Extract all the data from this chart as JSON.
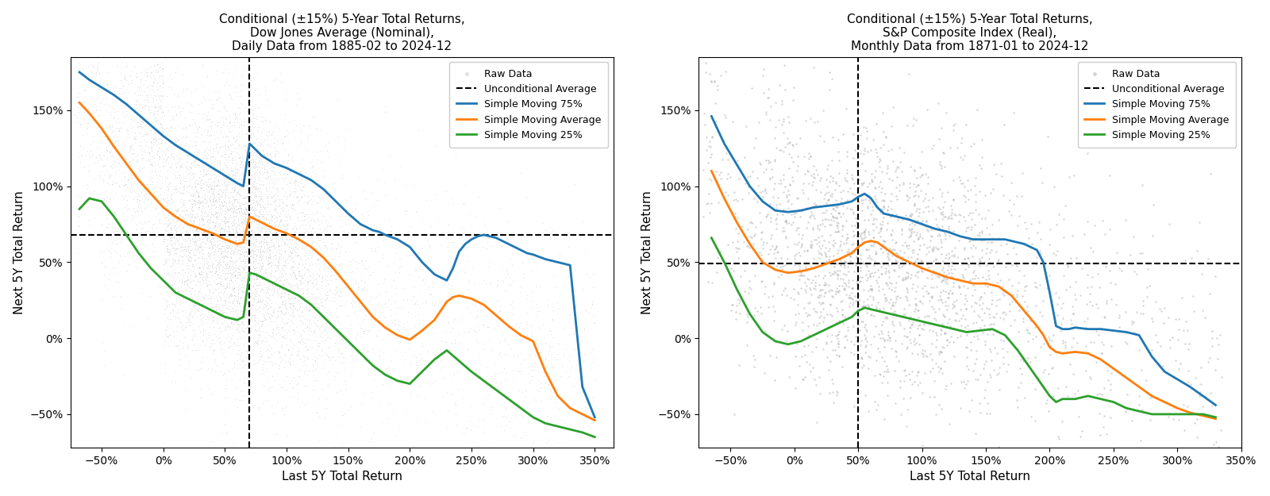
{
  "plot1": {
    "title": "Conditional (±15%) 5-Year Total Returns,\nDow Jones Average (Nominal),\nDaily Data from 1885-02 to 2024-12",
    "xlabel": "Last 5Y Total Return",
    "ylabel": "Next 5Y Total Return",
    "xlim": [
      -0.75,
      3.65
    ],
    "ylim": [
      -0.72,
      1.85
    ],
    "xticks": [
      -0.5,
      0.0,
      0.5,
      1.0,
      1.5,
      2.0,
      2.5,
      3.0,
      3.5
    ],
    "yticks": [
      -0.5,
      0.0,
      0.5,
      1.0,
      1.5
    ],
    "vline_x": 0.7,
    "hline_y": 0.68,
    "sma75_x": [
      -0.68,
      -0.6,
      -0.5,
      -0.4,
      -0.3,
      -0.2,
      -0.1,
      0.0,
      0.1,
      0.2,
      0.3,
      0.4,
      0.5,
      0.6,
      0.65,
      0.7,
      0.75,
      0.8,
      0.9,
      1.0,
      1.05,
      1.1,
      1.2,
      1.3,
      1.4,
      1.5,
      1.6,
      1.65,
      1.7,
      1.75,
      1.8,
      1.9,
      2.0,
      2.1,
      2.2,
      2.3,
      2.35,
      2.4,
      2.45,
      2.5,
      2.55,
      2.6,
      2.65,
      2.7,
      2.75,
      2.8,
      2.85,
      2.9,
      2.95,
      3.0,
      3.1,
      3.2,
      3.3,
      3.4,
      3.5
    ],
    "sma75_y": [
      1.75,
      1.7,
      1.65,
      1.6,
      1.54,
      1.47,
      1.4,
      1.33,
      1.27,
      1.22,
      1.17,
      1.12,
      1.07,
      1.02,
      1.0,
      1.28,
      1.24,
      1.2,
      1.15,
      1.12,
      1.1,
      1.08,
      1.04,
      0.98,
      0.9,
      0.82,
      0.75,
      0.73,
      0.71,
      0.7,
      0.68,
      0.65,
      0.6,
      0.5,
      0.42,
      0.38,
      0.46,
      0.57,
      0.62,
      0.65,
      0.67,
      0.68,
      0.67,
      0.66,
      0.64,
      0.62,
      0.6,
      0.58,
      0.56,
      0.55,
      0.52,
      0.5,
      0.48,
      -0.32,
      -0.52
    ],
    "sma_x": [
      -0.68,
      -0.6,
      -0.5,
      -0.4,
      -0.3,
      -0.2,
      -0.1,
      0.0,
      0.1,
      0.2,
      0.3,
      0.4,
      0.5,
      0.6,
      0.65,
      0.7,
      0.75,
      0.8,
      0.9,
      1.0,
      1.1,
      1.2,
      1.3,
      1.4,
      1.5,
      1.6,
      1.7,
      1.8,
      1.9,
      2.0,
      2.1,
      2.2,
      2.3,
      2.35,
      2.4,
      2.45,
      2.5,
      2.55,
      2.6,
      2.7,
      2.8,
      2.9,
      3.0,
      3.1,
      3.2,
      3.3,
      3.4,
      3.5
    ],
    "sma_y": [
      1.55,
      1.48,
      1.38,
      1.26,
      1.15,
      1.04,
      0.95,
      0.86,
      0.8,
      0.75,
      0.72,
      0.69,
      0.65,
      0.62,
      0.63,
      0.8,
      0.78,
      0.76,
      0.72,
      0.69,
      0.65,
      0.6,
      0.53,
      0.44,
      0.34,
      0.24,
      0.14,
      0.07,
      0.02,
      -0.01,
      0.05,
      0.12,
      0.24,
      0.27,
      0.28,
      0.27,
      0.26,
      0.24,
      0.22,
      0.15,
      0.08,
      0.02,
      -0.02,
      -0.22,
      -0.38,
      -0.46,
      -0.5,
      -0.54
    ],
    "sma25_x": [
      -0.68,
      -0.6,
      -0.5,
      -0.4,
      -0.3,
      -0.2,
      -0.1,
      0.0,
      0.1,
      0.2,
      0.3,
      0.4,
      0.5,
      0.6,
      0.65,
      0.7,
      0.75,
      0.8,
      0.9,
      1.0,
      1.1,
      1.2,
      1.3,
      1.4,
      1.5,
      1.6,
      1.7,
      1.8,
      1.9,
      2.0,
      2.1,
      2.2,
      2.3,
      2.4,
      2.5,
      2.6,
      2.7,
      2.8,
      2.9,
      3.0,
      3.1,
      3.2,
      3.3,
      3.4,
      3.5
    ],
    "sma25_y": [
      0.85,
      0.92,
      0.9,
      0.8,
      0.68,
      0.56,
      0.46,
      0.38,
      0.3,
      0.26,
      0.22,
      0.18,
      0.14,
      0.12,
      0.14,
      0.43,
      0.42,
      0.4,
      0.36,
      0.32,
      0.28,
      0.22,
      0.14,
      0.06,
      -0.02,
      -0.1,
      -0.18,
      -0.24,
      -0.28,
      -0.3,
      -0.22,
      -0.14,
      -0.08,
      -0.15,
      -0.22,
      -0.28,
      -0.34,
      -0.4,
      -0.46,
      -0.52,
      -0.56,
      -0.58,
      -0.6,
      -0.62,
      -0.65
    ]
  },
  "plot2": {
    "title": "Conditional (±15%) 5-Year Total Returns,\nS&P Composite Index (Real),\nMonthly Data from 1871-01 to 2024-12",
    "xlabel": "Last 5Y Total Return",
    "ylabel": "Next 5Y Total Return",
    "xlim": [
      -0.75,
      3.5
    ],
    "ylim": [
      -0.72,
      1.85
    ],
    "xticks": [
      -0.5,
      0.0,
      0.5,
      1.0,
      1.5,
      2.0,
      2.5,
      3.0,
      3.5
    ],
    "yticks": [
      -0.5,
      0.0,
      0.5,
      1.0,
      1.5
    ],
    "vline_x": 0.5,
    "hline_y": 0.49,
    "sma75_x": [
      -0.65,
      -0.55,
      -0.45,
      -0.35,
      -0.25,
      -0.15,
      -0.05,
      0.05,
      0.15,
      0.25,
      0.35,
      0.45,
      0.5,
      0.55,
      0.6,
      0.65,
      0.7,
      0.8,
      0.9,
      1.0,
      1.1,
      1.2,
      1.3,
      1.4,
      1.5,
      1.55,
      1.6,
      1.65,
      1.7,
      1.75,
      1.8,
      1.9,
      1.95,
      2.0,
      2.05,
      2.1,
      2.15,
      2.2,
      2.3,
      2.4,
      2.5,
      2.6,
      2.7,
      2.8,
      2.9,
      3.0,
      3.1,
      3.2,
      3.3
    ],
    "sma75_y": [
      1.46,
      1.28,
      1.14,
      1.0,
      0.9,
      0.84,
      0.83,
      0.84,
      0.86,
      0.87,
      0.88,
      0.9,
      0.93,
      0.95,
      0.92,
      0.86,
      0.82,
      0.8,
      0.78,
      0.75,
      0.72,
      0.7,
      0.67,
      0.65,
      0.65,
      0.65,
      0.65,
      0.65,
      0.64,
      0.63,
      0.62,
      0.58,
      0.5,
      0.3,
      0.08,
      0.06,
      0.06,
      0.07,
      0.06,
      0.06,
      0.05,
      0.04,
      0.02,
      -0.12,
      -0.22,
      -0.27,
      -0.32,
      -0.38,
      -0.44
    ],
    "sma_x": [
      -0.65,
      -0.55,
      -0.45,
      -0.35,
      -0.25,
      -0.15,
      -0.05,
      0.05,
      0.15,
      0.25,
      0.35,
      0.45,
      0.5,
      0.55,
      0.6,
      0.65,
      0.7,
      0.8,
      0.9,
      1.0,
      1.1,
      1.2,
      1.3,
      1.4,
      1.5,
      1.6,
      1.7,
      1.8,
      1.9,
      1.95,
      2.0,
      2.05,
      2.1,
      2.2,
      2.3,
      2.4,
      2.5,
      2.6,
      2.7,
      2.8,
      2.9,
      3.0,
      3.1,
      3.2,
      3.3
    ],
    "sma_y": [
      1.1,
      0.92,
      0.76,
      0.62,
      0.5,
      0.45,
      0.43,
      0.44,
      0.46,
      0.49,
      0.52,
      0.56,
      0.6,
      0.63,
      0.64,
      0.63,
      0.6,
      0.54,
      0.5,
      0.46,
      0.43,
      0.4,
      0.38,
      0.36,
      0.36,
      0.34,
      0.28,
      0.18,
      0.08,
      0.02,
      -0.06,
      -0.09,
      -0.1,
      -0.09,
      -0.1,
      -0.14,
      -0.2,
      -0.26,
      -0.32,
      -0.38,
      -0.42,
      -0.46,
      -0.49,
      -0.51,
      -0.53
    ],
    "sma25_x": [
      -0.65,
      -0.55,
      -0.45,
      -0.35,
      -0.25,
      -0.15,
      -0.05,
      0.05,
      0.15,
      0.25,
      0.35,
      0.45,
      0.5,
      0.55,
      0.65,
      0.75,
      0.85,
      0.95,
      1.05,
      1.15,
      1.25,
      1.35,
      1.45,
      1.55,
      1.65,
      1.75,
      1.85,
      1.95,
      2.0,
      2.05,
      2.1,
      2.15,
      2.2,
      2.3,
      2.4,
      2.5,
      2.6,
      2.7,
      2.8,
      2.9,
      3.0,
      3.1,
      3.2,
      3.3
    ],
    "sma25_y": [
      0.66,
      0.5,
      0.32,
      0.16,
      0.04,
      -0.02,
      -0.04,
      -0.02,
      0.02,
      0.06,
      0.1,
      0.14,
      0.18,
      0.2,
      0.18,
      0.16,
      0.14,
      0.12,
      0.1,
      0.08,
      0.06,
      0.04,
      0.05,
      0.06,
      0.02,
      -0.08,
      -0.2,
      -0.32,
      -0.38,
      -0.42,
      -0.4,
      -0.4,
      -0.4,
      -0.38,
      -0.4,
      -0.42,
      -0.46,
      -0.48,
      -0.5,
      -0.5,
      -0.5,
      -0.5,
      -0.5,
      -0.52
    ]
  },
  "colors": {
    "raw_data": "#aaaaaa",
    "sma75": "#1f77b4",
    "sma": "#ff7f0e",
    "sma25": "#2ca02c",
    "vline": "black",
    "hline": "black"
  },
  "legend_labels": [
    "Raw Data",
    "Unconditional Average",
    "Simple Moving 75%",
    "Simple Moving Average",
    "Simple Moving 25%"
  ],
  "djia_scatter_seed": 42,
  "sp_scatter_seed": 123
}
